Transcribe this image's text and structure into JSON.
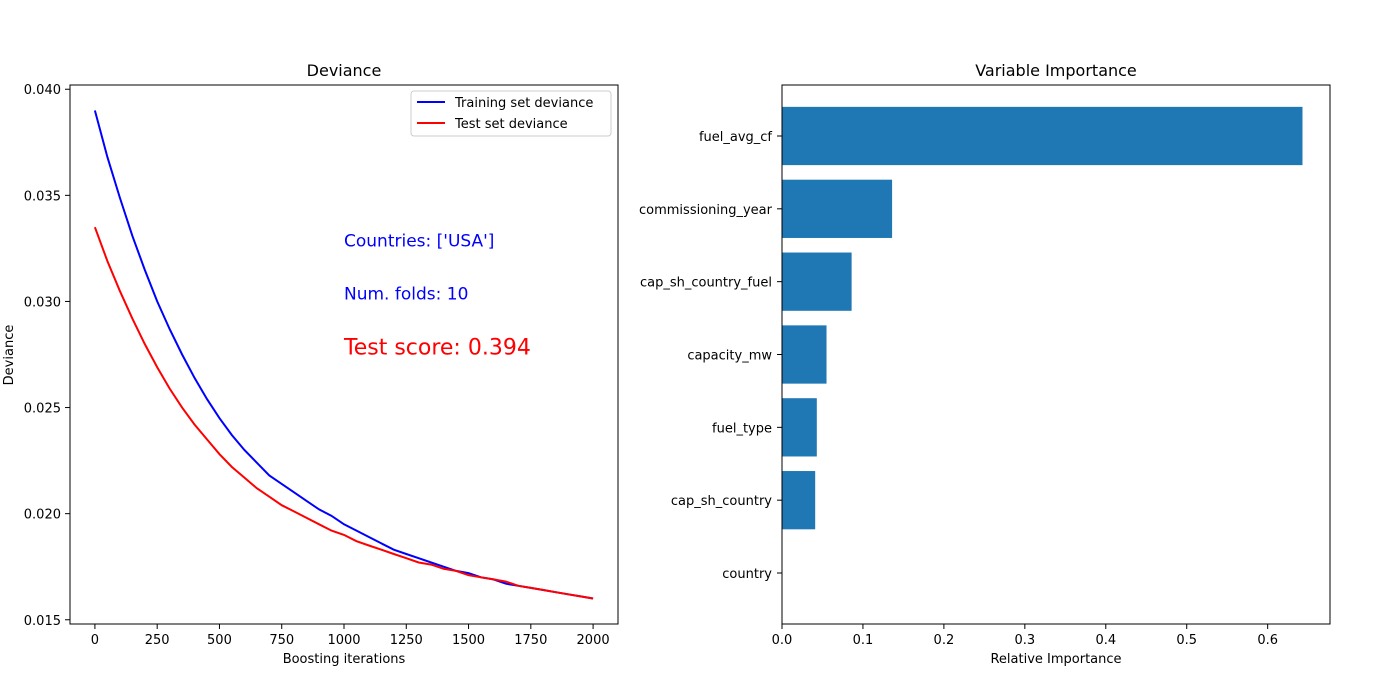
{
  "chart_data": [
    {
      "type": "line",
      "title": "Deviance",
      "xlabel": "Boosting iterations",
      "ylabel": "Deviance",
      "xlim": [
        -100,
        2100
      ],
      "ylim": [
        0.0148,
        0.0402
      ],
      "xticks": [
        0,
        250,
        500,
        750,
        1000,
        1250,
        1500,
        1750,
        2000
      ],
      "xtick_labels": [
        "0",
        "250",
        "500",
        "750",
        "1000",
        "1250",
        "1500",
        "1750",
        "2000"
      ],
      "yticks": [
        0.015,
        0.02,
        0.025,
        0.03,
        0.035,
        0.04
      ],
      "ytick_labels": [
        "0.015",
        "0.020",
        "0.025",
        "0.030",
        "0.035",
        "0.040"
      ],
      "grid": false,
      "legend_position": "top-right",
      "series": [
        {
          "name": "Training set deviance",
          "color": "#0000ff",
          "x": [
            0,
            50,
            100,
            150,
            200,
            250,
            300,
            350,
            400,
            450,
            500,
            550,
            600,
            650,
            700,
            750,
            800,
            850,
            900,
            950,
            1000,
            1050,
            1100,
            1150,
            1200,
            1250,
            1300,
            1350,
            1400,
            1450,
            1500,
            1550,
            1600,
            1650,
            1700,
            1750,
            1800,
            1850,
            1900,
            1950,
            2000
          ],
          "values": [
            0.039,
            0.0368,
            0.0349,
            0.0331,
            0.0315,
            0.03,
            0.0287,
            0.0275,
            0.0264,
            0.0254,
            0.0245,
            0.0237,
            0.023,
            0.0224,
            0.0218,
            0.0214,
            0.021,
            0.0206,
            0.0202,
            0.0199,
            0.0195,
            0.0192,
            0.0189,
            0.0186,
            0.0183,
            0.0181,
            0.0179,
            0.0177,
            0.0175,
            0.0173,
            0.0172,
            0.017,
            0.0169,
            0.0167,
            0.0166,
            0.0165,
            0.0164,
            0.0163,
            0.0162,
            0.0161,
            0.016
          ]
        },
        {
          "name": "Test set deviance",
          "color": "#ff0000",
          "x": [
            0,
            50,
            100,
            150,
            200,
            250,
            300,
            350,
            400,
            450,
            500,
            550,
            600,
            650,
            700,
            750,
            800,
            850,
            900,
            950,
            1000,
            1050,
            1100,
            1150,
            1200,
            1250,
            1300,
            1350,
            1400,
            1450,
            1500,
            1550,
            1600,
            1650,
            1700,
            1750,
            1800,
            1850,
            1900,
            1950,
            2000
          ],
          "values": [
            0.0335,
            0.0319,
            0.0305,
            0.0292,
            0.028,
            0.0269,
            0.0259,
            0.025,
            0.0242,
            0.0235,
            0.0228,
            0.0222,
            0.0217,
            0.0212,
            0.0208,
            0.0204,
            0.0201,
            0.0198,
            0.0195,
            0.0192,
            0.019,
            0.0187,
            0.0185,
            0.0183,
            0.0181,
            0.0179,
            0.0177,
            0.0176,
            0.0174,
            0.0173,
            0.0171,
            0.017,
            0.0169,
            0.0168,
            0.0166,
            0.0165,
            0.0164,
            0.0163,
            0.0162,
            0.0161,
            0.016
          ]
        }
      ],
      "annotations": [
        {
          "text": "Countries: ['USA']",
          "x": 1000,
          "y": 0.0326,
          "color": "#0000ff",
          "size": "medium"
        },
        {
          "text": "Num. folds: 10",
          "x": 1000,
          "y": 0.0301,
          "color": "#0000ff",
          "size": "medium"
        },
        {
          "text": "Test score: 0.394",
          "x": 1000,
          "y": 0.0275,
          "color": "#ff0000",
          "size": "large"
        }
      ]
    },
    {
      "type": "bar",
      "orientation": "horizontal",
      "title": "Variable Importance",
      "xlabel": "Relative Importance",
      "ylabel": "",
      "xlim": [
        0,
        0.677
      ],
      "xticks": [
        0,
        0.1,
        0.2,
        0.3,
        0.4,
        0.5,
        0.6
      ],
      "xtick_labels": [
        "0.0",
        "0.1",
        "0.2",
        "0.3",
        "0.4",
        "0.5",
        "0.6"
      ],
      "grid": false,
      "bar_color": "#1f77b4",
      "categories": [
        "fuel_avg_cf",
        "commissioning_year",
        "cap_sh_country_fuel",
        "capacity_mw",
        "fuel_type",
        "cap_sh_country",
        "country"
      ],
      "values": [
        0.643,
        0.136,
        0.086,
        0.055,
        0.043,
        0.041,
        0.0
      ]
    }
  ]
}
